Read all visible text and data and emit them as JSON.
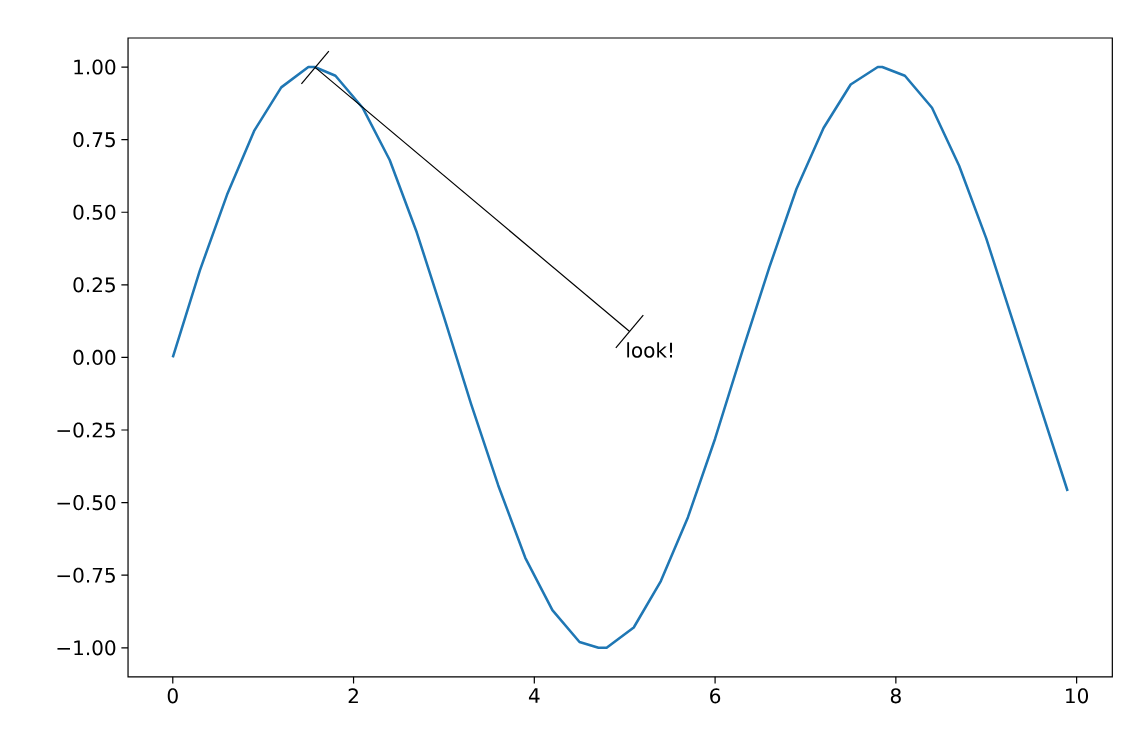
{
  "chart_data": {
    "type": "line",
    "x": [
      0,
      0.3,
      0.6,
      0.9,
      1.2,
      1.5,
      1.57,
      1.8,
      2.1,
      2.4,
      2.7,
      3.0,
      3.3,
      3.6,
      3.9,
      4.2,
      4.5,
      4.71,
      4.8,
      5.1,
      5.4,
      5.7,
      6.0,
      6.3,
      6.6,
      6.9,
      7.2,
      7.5,
      7.8,
      7.85,
      8.1,
      8.4,
      8.7,
      9.0,
      9.3,
      9.6,
      9.9
    ],
    "series": [
      {
        "color": "#1f77b4",
        "values": [
          0,
          0.3,
          0.56,
          0.78,
          0.93,
          1.0,
          1.0,
          0.97,
          0.86,
          0.68,
          0.43,
          0.14,
          -0.16,
          -0.44,
          -0.69,
          -0.87,
          -0.98,
          -1.0,
          -1.0,
          -0.93,
          -0.77,
          -0.55,
          -0.28,
          0.02,
          0.31,
          0.58,
          0.79,
          0.94,
          1.0,
          1.0,
          0.97,
          0.86,
          0.66,
          0.41,
          0.12,
          -0.17,
          -0.46
        ]
      }
    ],
    "xlim": [
      -0.495,
      10.395
    ],
    "ylim": [
      -1.1,
      1.1
    ],
    "xticks": [
      0,
      2,
      4,
      6,
      8,
      10
    ],
    "yticks": [
      {
        "value": -1,
        "label": "−1.00"
      },
      {
        "value": -0.75,
        "label": "−0.75"
      },
      {
        "value": -0.5,
        "label": "−0.50"
      },
      {
        "value": -0.25,
        "label": "−0.25"
      },
      {
        "value": 0,
        "label": "0.00"
      },
      {
        "value": 0.25,
        "label": "0.25"
      },
      {
        "value": 0.5,
        "label": "0.50"
      },
      {
        "value": 0.75,
        "label": "0.75"
      },
      {
        "value": 1,
        "label": "1.00"
      }
    ],
    "annotations": [
      {
        "text": "look!",
        "x": 1.57,
        "y": 1.0
      }
    ],
    "marker": "none",
    "line_style": "solid"
  }
}
